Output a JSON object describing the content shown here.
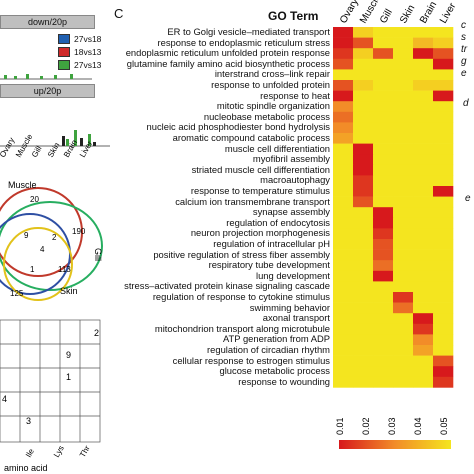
{
  "panel_letter": "C",
  "left_panel": {
    "header_top": "down/20p",
    "header_mid": "up/20p",
    "legend_items": [
      {
        "label": "27vs18",
        "color": "#1f5fb0"
      },
      {
        "label": "18vs13",
        "color": "#d02a2a"
      },
      {
        "label": "27vs13",
        "color": "#3fa33f"
      }
    ],
    "bar_tissues": [
      "Ovary",
      "Muscle",
      "Gill",
      "Skin",
      "Brain",
      "Liver"
    ],
    "venn_labels": [
      "Muscle",
      "Gill",
      "Skin"
    ],
    "venn_numbers": [
      "20",
      "190",
      "9",
      "113",
      "125",
      "4",
      "2",
      "1"
    ],
    "grid_numbers": [
      "2",
      "9",
      "1",
      "3",
      "4"
    ],
    "grid_x_ticks": [
      "Ile",
      "Lys",
      "Thr"
    ],
    "grid_x_label": "amino acid"
  },
  "right_labels": {
    "top_fragments": [
      "c",
      "s",
      "tr",
      "g",
      "e"
    ],
    "mid_fragment": "d",
    "low_fragment": "e"
  },
  "chart_data": {
    "type": "heatmap",
    "title": "GO Term",
    "columns": [
      "Ovary",
      "Muscle",
      "Gill",
      "Skin",
      "Brain",
      "Liver"
    ],
    "rows": [
      "ER to Golgi vesicle–mediated transport",
      "response to endoplasmic reticulum stress",
      "endoplasmic reticulum unfolded protein response",
      "glutamine family amino acid biosynthetic process",
      "interstrand cross–link repair",
      "response to unfolded protein",
      "response to heat",
      "mitotic spindle organization",
      "nucleobase metabolic process",
      "nucleic acid phosphodiester bond hydrolysis",
      "aromatic compound catabolic process",
      "muscle cell differentiation",
      "myofibril assembly",
      "striated muscle cell differentiation",
      "macroautophagy",
      "response to temperature stimulus",
      "calcium ion transmembrane transport",
      "synapse assembly",
      "regulation of endocytosis",
      "neuron projection morphogenesis",
      "regulation of intracellular pH",
      "positive regulation of stress fiber assembly",
      "respiratory tube development",
      "lung development",
      "stress–activated protein kinase signaling cascade",
      "regulation of response to cytokine stimulus",
      "swimming behavior",
      "axonal transport",
      "mitochondrion transport along microtubule",
      "ATP generation from ADP",
      "regulation of circadian rhythm",
      "cellular response to estrogen stimulus",
      "glucose metabolic process",
      "response to wounding"
    ],
    "values": [
      [
        0.01,
        0.045,
        0.05,
        0.05,
        0.05,
        0.05
      ],
      [
        0.01,
        0.02,
        0.05,
        0.05,
        0.04,
        0.045
      ],
      [
        0.015,
        0.045,
        0.02,
        0.05,
        0.01,
        0.02
      ],
      [
        0.02,
        0.05,
        0.05,
        0.05,
        0.05,
        0.01
      ],
      [
        0.05,
        0.05,
        0.05,
        0.05,
        0.05,
        0.05
      ],
      [
        0.02,
        0.045,
        0.05,
        0.05,
        0.045,
        0.045
      ],
      [
        0.01,
        0.05,
        0.05,
        0.05,
        0.05,
        0.01
      ],
      [
        0.03,
        0.05,
        0.05,
        0.05,
        0.05,
        0.05
      ],
      [
        0.025,
        0.05,
        0.05,
        0.05,
        0.05,
        0.05
      ],
      [
        0.03,
        0.05,
        0.05,
        0.05,
        0.05,
        0.05
      ],
      [
        0.035,
        0.05,
        0.05,
        0.05,
        0.05,
        0.05
      ],
      [
        0.05,
        0.01,
        0.05,
        0.05,
        0.05,
        0.05
      ],
      [
        0.05,
        0.01,
        0.05,
        0.05,
        0.05,
        0.05
      ],
      [
        0.05,
        0.01,
        0.05,
        0.05,
        0.05,
        0.05
      ],
      [
        0.05,
        0.015,
        0.05,
        0.05,
        0.05,
        0.05
      ],
      [
        0.05,
        0.015,
        0.05,
        0.05,
        0.05,
        0.01
      ],
      [
        0.05,
        0.02,
        0.05,
        0.05,
        0.05,
        0.05
      ],
      [
        0.05,
        0.05,
        0.01,
        0.05,
        0.05,
        0.05
      ],
      [
        0.05,
        0.05,
        0.01,
        0.05,
        0.05,
        0.05
      ],
      [
        0.05,
        0.05,
        0.015,
        0.05,
        0.05,
        0.05
      ],
      [
        0.05,
        0.05,
        0.02,
        0.05,
        0.05,
        0.05
      ],
      [
        0.05,
        0.05,
        0.02,
        0.05,
        0.05,
        0.05
      ],
      [
        0.05,
        0.05,
        0.025,
        0.05,
        0.05,
        0.05
      ],
      [
        0.05,
        0.05,
        0.01,
        0.05,
        0.05,
        0.05
      ],
      [
        0.05,
        0.05,
        0.05,
        0.05,
        0.05,
        0.05
      ],
      [
        0.05,
        0.05,
        0.05,
        0.015,
        0.05,
        0.05
      ],
      [
        0.05,
        0.05,
        0.05,
        0.025,
        0.05,
        0.05
      ],
      [
        0.05,
        0.05,
        0.05,
        0.05,
        0.01,
        0.05
      ],
      [
        0.05,
        0.05,
        0.05,
        0.05,
        0.015,
        0.05
      ],
      [
        0.05,
        0.05,
        0.05,
        0.05,
        0.03,
        0.05
      ],
      [
        0.05,
        0.05,
        0.05,
        0.05,
        0.035,
        0.05
      ],
      [
        0.05,
        0.05,
        0.05,
        0.05,
        0.05,
        0.02
      ],
      [
        0.05,
        0.05,
        0.05,
        0.05,
        0.05,
        0.01
      ],
      [
        0.05,
        0.05,
        0.05,
        0.05,
        0.05,
        0.015
      ]
    ],
    "colorbar_ticks": [
      "0.01",
      "0.02",
      "0.03",
      "0.04",
      "0.05"
    ],
    "colorbar_range": [
      0.01,
      0.05
    ],
    "colors": {
      "low": "#d7191c",
      "mid": "#f28c28",
      "high": "#f4e51f"
    }
  }
}
